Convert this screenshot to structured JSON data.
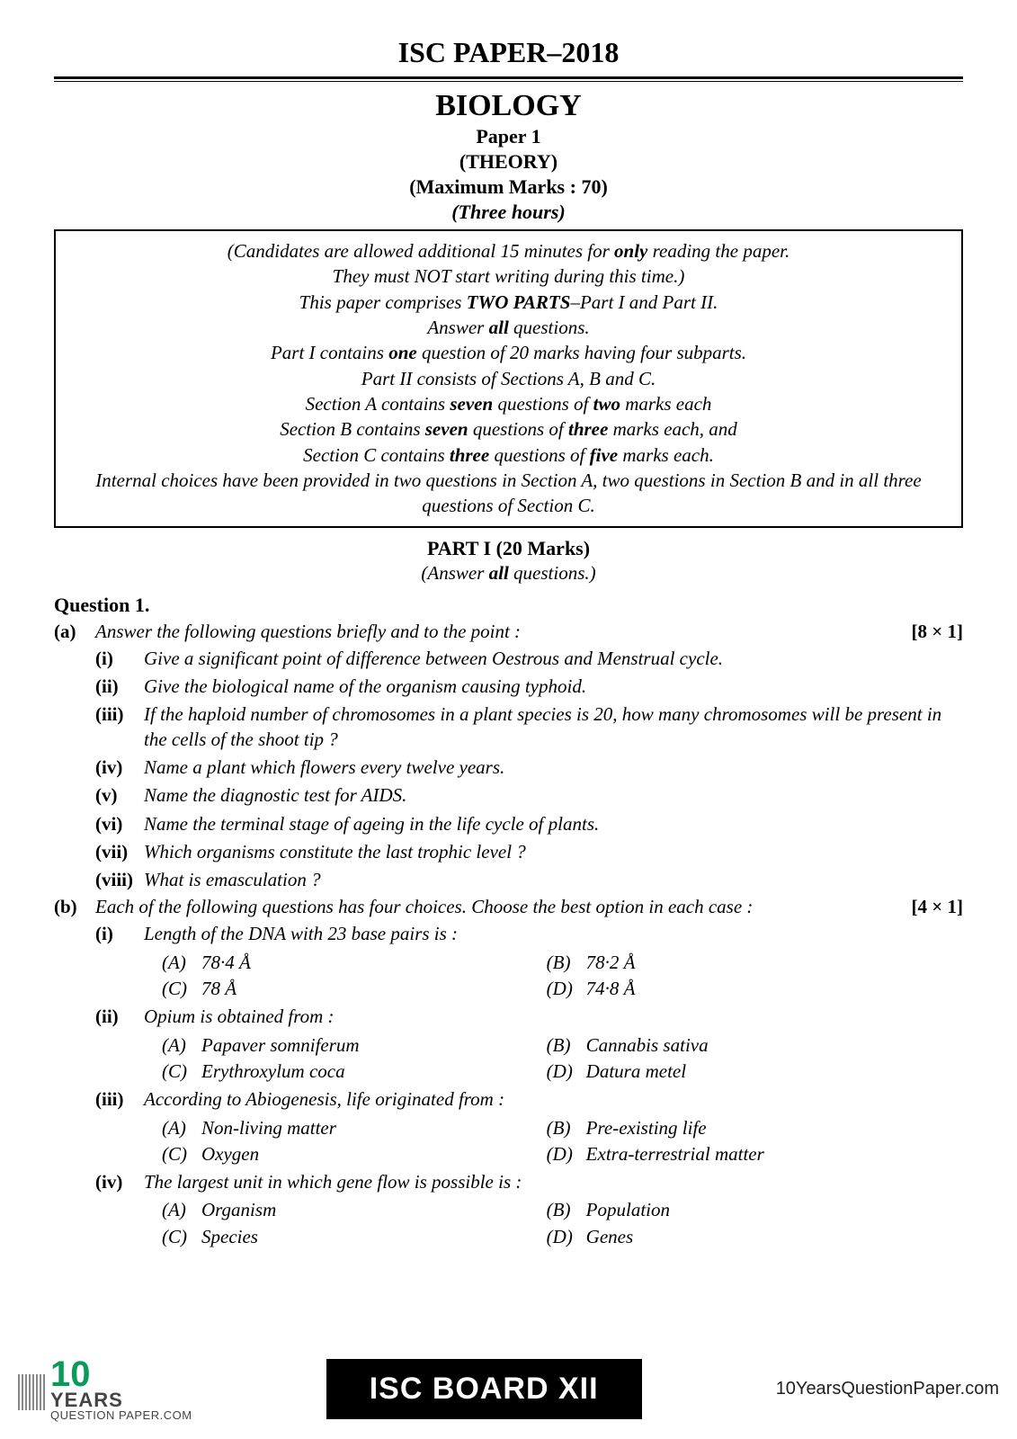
{
  "header": {
    "page_title": "ISC PAPER–2018",
    "subject": "BIOLOGY",
    "paper_number": "Paper  1",
    "theory": "(THEORY)",
    "max_marks": "(Maximum Marks : 70)",
    "duration": "(Three hours)"
  },
  "instructions": {
    "line1a": "(Candidates are allowed additional 15 minutes for ",
    "line1_bold": "only",
    "line1b": " reading the paper.",
    "line2": "They must NOT start writing during this time.)",
    "line3a": "This paper comprises ",
    "line3_bold": "TWO PARTS",
    "line3b": "–Part I and Part II.",
    "line4a": "Answer ",
    "line4_bold": "all",
    "line4b": " questions.",
    "line5a": "Part I contains ",
    "line5_bold": "one",
    "line5b": " question of 20 marks having four subparts.",
    "line6": "Part II consists of Sections A, B and C.",
    "line7a": "Section A contains ",
    "line7_bold1": "seven",
    "line7b": " questions of ",
    "line7_bold2": "two",
    "line7c": " marks each",
    "line8a": "Section B contains ",
    "line8_bold1": "seven",
    "line8b": " questions of ",
    "line8_bold2": "three",
    "line8c": " marks each, and",
    "line9a": "Section C contains ",
    "line9_bold1": "three",
    "line9b": " questions of ",
    "line9_bold2": "five",
    "line9c": " marks each.",
    "line10": "Internal choices have been provided in two questions in Section A, two questions in Section B and in all three questions of Section C."
  },
  "part1": {
    "heading": "PART I (20 Marks)",
    "answer_all_a": "(Answer ",
    "answer_all_bold": "all",
    "answer_all_b": " questions.)"
  },
  "q1": {
    "label": "Question 1.",
    "a": {
      "label": "(a)",
      "text": "Answer the following questions briefly and to the point :",
      "marks": "[8 × 1]",
      "items": [
        {
          "num": "(i)",
          "text": "Give a significant point of difference between Oestrous and Menstrual cycle."
        },
        {
          "num": "(ii)",
          "text": "Give the biological name of the organism causing typhoid."
        },
        {
          "num": "(iii)",
          "text": "If the haploid number of chromosomes in a plant species is 20, how many chromosomes will be present in the cells of the shoot tip ?"
        },
        {
          "num": "(iv)",
          "text": "Name a plant which flowers every twelve years."
        },
        {
          "num": "(v)",
          "text": "Name the diagnostic test for AIDS."
        },
        {
          "num": "(vi)",
          "text": "Name the terminal stage of ageing in the life cycle of plants."
        },
        {
          "num": "(vii)",
          "text": "Which organisms constitute the last trophic level ?"
        },
        {
          "num": "(viii)",
          "text": "What is emasculation ?"
        }
      ]
    },
    "b": {
      "label": "(b)",
      "text": "Each of the following questions has four choices. Choose the best option in each case :",
      "marks": "[4 × 1]",
      "mcqs": [
        {
          "num": "(i)",
          "stem": "Length of the DNA with 23 base pairs is :",
          "opts": [
            {
              "l": "(A)",
              "t": "78·4 Å"
            },
            {
              "l": "(B)",
              "t": "78·2 Å"
            },
            {
              "l": "(C)",
              "t": "78 Å"
            },
            {
              "l": "(D)",
              "t": "74·8 Å"
            }
          ]
        },
        {
          "num": "(ii)",
          "stem": "Opium is obtained from :",
          "opts": [
            {
              "l": "(A)",
              "t": "Papaver somniferum"
            },
            {
              "l": "(B)",
              "t": "Cannabis sativa"
            },
            {
              "l": "(C)",
              "t": "Erythroxylum coca"
            },
            {
              "l": "(D)",
              "t": "Datura metel"
            }
          ]
        },
        {
          "num": "(iii)",
          "stem": "According to Abiogenesis, life originated from :",
          "opts": [
            {
              "l": "(A)",
              "t": "Non-living matter"
            },
            {
              "l": "(B)",
              "t": "Pre-existing life"
            },
            {
              "l": "(C)",
              "t": "Oxygen"
            },
            {
              "l": "(D)",
              "t": "Extra-terrestrial matter"
            }
          ]
        },
        {
          "num": "(iv)",
          "stem": "The largest unit in which gene flow is possible is :",
          "opts": [
            {
              "l": "(A)",
              "t": "Organism"
            },
            {
              "l": "(B)",
              "t": "Population"
            },
            {
              "l": "(C)",
              "t": "Species"
            },
            {
              "l": "(D)",
              "t": "Genes"
            }
          ]
        }
      ]
    }
  },
  "footer": {
    "ten": "10",
    "years": "YEARS",
    "qp": "QUESTION PAPER.COM",
    "badge": "ISC BOARD XII",
    "url": "10YearsQuestionPaper.com"
  },
  "colors": {
    "text": "#000000",
    "background": "#ffffff",
    "accent_green": "#0a9b5c",
    "badge_bg": "#000000",
    "badge_fg": "#ffffff"
  }
}
